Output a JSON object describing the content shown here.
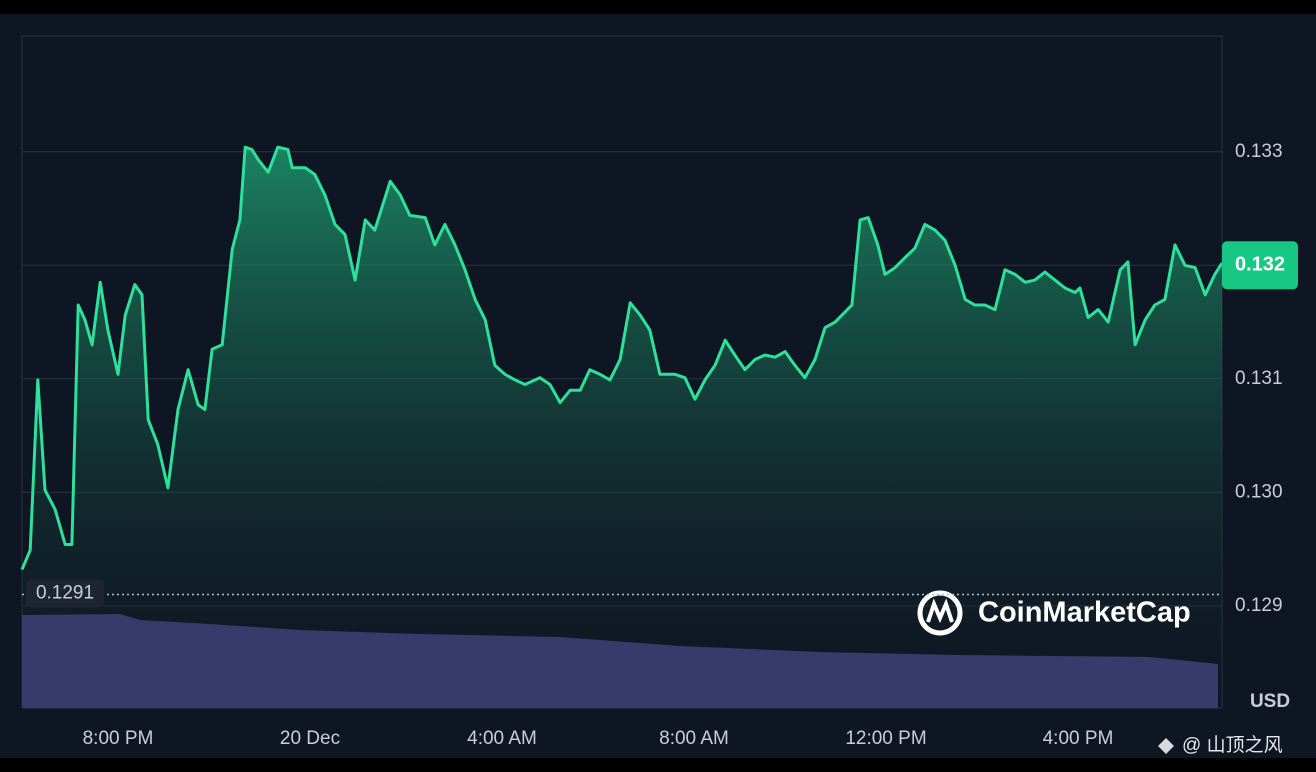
{
  "chart_data": {
    "type": "area",
    "x": [
      18,
      18.17,
      18.33,
      18.48,
      18.69,
      18.9,
      19.04,
      19.17,
      19.31,
      19.46,
      19.63,
      19.79,
      20,
      20.15,
      20.35,
      20.5,
      20.63,
      20.83,
      21.04,
      21.25,
      21.46,
      21.67,
      21.81,
      21.96,
      22.17,
      22.38,
      22.54,
      22.65,
      22.79,
      22.92,
      23.13,
      23.33,
      23.54,
      23.63,
      23.9,
      24.1,
      24.31,
      24.52,
      24.73,
      24.94,
      25.15,
      25.35,
      25.67,
      25.88,
      26.08,
      26.4,
      26.6,
      26.81,
      27.02,
      27.23,
      27.44,
      27.65,
      27.85,
      28.06,
      28.27,
      28.48,
      28.79,
      29,
      29.21,
      29.42,
      29.63,
      29.83,
      30.04,
      30.25,
      30.46,
      30.67,
      30.88,
      31.08,
      31.29,
      31.6,
      31.81,
      32.02,
      32.23,
      32.44,
      32.65,
      32.85,
      33.06,
      33.27,
      33.48,
      33.69,
      33.9,
      34.1,
      34.31,
      34.52,
      34.73,
      34.94,
      35.15,
      35.29,
      35.46,
      35.63,
      35.83,
      35.98,
      36.19,
      36.4,
      36.6,
      36.81,
      37.02,
      37.23,
      37.44,
      37.65,
      37.85,
      38.06,
      38.27,
      38.48,
      38.69,
      38.9,
      39.1,
      39.31,
      39.52,
      39.73,
      39.94,
      40.04,
      40.21,
      40.42,
      40.63,
      40.88,
      41.04,
      41.19,
      41.4,
      41.6,
      41.81,
      42.02,
      42.23,
      42.44,
      42.65,
      42.85,
      43
    ],
    "values": [
      0.12932,
      0.12949,
      0.13099,
      0.13002,
      0.12985,
      0.12954,
      0.12954,
      0.13165,
      0.13152,
      0.1313,
      0.13185,
      0.13143,
      0.13104,
      0.13156,
      0.13183,
      0.13174,
      0.13064,
      0.13042,
      0.13004,
      0.13073,
      0.13108,
      0.13077,
      0.13073,
      0.13126,
      0.1313,
      0.13214,
      0.1324,
      0.13304,
      0.13302,
      0.13293,
      0.13282,
      0.13304,
      0.13302,
      0.13286,
      0.13286,
      0.1328,
      0.13262,
      0.13236,
      0.13227,
      0.13187,
      0.1324,
      0.13231,
      0.13274,
      0.13262,
      0.13244,
      0.13242,
      0.13218,
      0.13236,
      0.13218,
      0.13196,
      0.1317,
      0.13152,
      0.13112,
      0.13104,
      0.13099,
      0.13095,
      0.13101,
      0.13095,
      0.13079,
      0.1309,
      0.1309,
      0.13108,
      0.13104,
      0.13099,
      0.13117,
      0.13167,
      0.13156,
      0.13143,
      0.13104,
      0.13104,
      0.13101,
      0.13082,
      0.13099,
      0.13112,
      0.13134,
      0.13121,
      0.13108,
      0.13117,
      0.13121,
      0.13119,
      0.13124,
      0.13112,
      0.13101,
      0.13117,
      0.13145,
      0.1315,
      0.13159,
      0.13165,
      0.1324,
      0.13242,
      0.13218,
      0.13192,
      0.13198,
      0.13207,
      0.13215,
      0.13236,
      0.13231,
      0.13222,
      0.132,
      0.1317,
      0.13165,
      0.13165,
      0.13161,
      0.13196,
      0.13192,
      0.13185,
      0.13187,
      0.13194,
      0.13187,
      0.1318,
      0.13176,
      0.1318,
      0.13154,
      0.13161,
      0.1315,
      0.13196,
      0.13203,
      0.1313,
      0.13152,
      0.13165,
      0.1317,
      0.13218,
      0.132,
      0.13198,
      0.13174,
      0.13192,
      0.13202
    ],
    "color": "#2ee09b",
    "xlim": [
      18,
      43
    ],
    "xticks": [
      {
        "value": 20,
        "label": "8:00 PM"
      },
      {
        "value": 24,
        "label": "20 Dec"
      },
      {
        "value": 28,
        "label": "4:00 AM"
      },
      {
        "value": 32,
        "label": "8:00 AM"
      },
      {
        "value": 36,
        "label": "12:00 PM"
      },
      {
        "value": 40,
        "label": "4:00 PM"
      }
    ],
    "ylim": [
      0.1281,
      0.13402
    ],
    "yticks": [
      0.129,
      {
        "value": 0.13,
        "label": "0.130"
      },
      0.131,
      0.132,
      0.133
    ],
    "grid": true,
    "y_unit": "USD",
    "open_price": 0.1291,
    "last_price": 0.132,
    "watermark": "CoinMarketCap",
    "credit": "@ 山顶之风"
  }
}
